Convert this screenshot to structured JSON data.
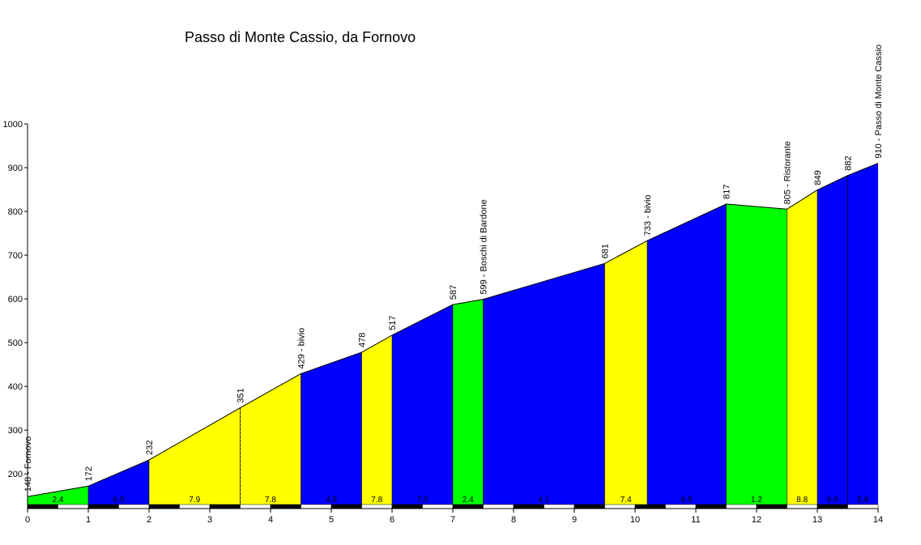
{
  "chart_data": {
    "type": "area",
    "title": "Passo di Monte Cassio, da Fornovo",
    "xlabel": "",
    "ylabel": "",
    "xlim": [
      0,
      14
    ],
    "ylim": [
      130,
      1000
    ],
    "x_ticks": [
      0,
      1,
      2,
      3,
      4,
      5,
      6,
      7,
      8,
      9,
      10,
      11,
      12,
      13,
      14
    ],
    "y_ticks": [
      200,
      300,
      400,
      500,
      600,
      700,
      800,
      900,
      1000
    ],
    "profile": [
      {
        "x": 0,
        "y": 148
      },
      {
        "x": 1,
        "y": 172
      },
      {
        "x": 2,
        "y": 232
      },
      {
        "x": 3.5,
        "y": 351
      },
      {
        "x": 4.5,
        "y": 429
      },
      {
        "x": 5.5,
        "y": 478
      },
      {
        "x": 6,
        "y": 517
      },
      {
        "x": 7,
        "y": 587
      },
      {
        "x": 7.5,
        "y": 599
      },
      {
        "x": 9.5,
        "y": 681
      },
      {
        "x": 10.2,
        "y": 733
      },
      {
        "x": 11.5,
        "y": 817
      },
      {
        "x": 12.5,
        "y": 805
      },
      {
        "x": 13,
        "y": 849
      },
      {
        "x": 13.5,
        "y": 882
      },
      {
        "x": 14,
        "y": 910
      }
    ],
    "segments": [
      {
        "x0": 0,
        "x1": 1,
        "gradient": "2.4",
        "color": "#00ff00"
      },
      {
        "x0": 1,
        "x1": 2,
        "gradient": "6.0",
        "color": "#0000ff"
      },
      {
        "x0": 2,
        "x1": 3.5,
        "gradient": "7.9",
        "color": "#ffff00"
      },
      {
        "x0": 3.5,
        "x1": 4.5,
        "gradient": "7.8",
        "color": "#ffff00"
      },
      {
        "x0": 4.5,
        "x1": 5.5,
        "gradient": "4.9",
        "color": "#0000ff"
      },
      {
        "x0": 5.5,
        "x1": 6,
        "gradient": "7.8",
        "color": "#ffff00"
      },
      {
        "x0": 6,
        "x1": 7,
        "gradient": "7.0",
        "color": "#0000ff"
      },
      {
        "x0": 7,
        "x1": 7.5,
        "gradient": "2.4",
        "color": "#00ff00"
      },
      {
        "x0": 7.5,
        "x1": 9.5,
        "gradient": "4.1",
        "color": "#0000ff"
      },
      {
        "x0": 9.5,
        "x1": 10.2,
        "gradient": "7.4",
        "color": "#ffff00"
      },
      {
        "x0": 10.2,
        "x1": 11.5,
        "gradient": "6.5",
        "color": "#0000ff"
      },
      {
        "x0": 11.5,
        "x1": 12.5,
        "gradient": "1.2",
        "color": "#00ff00"
      },
      {
        "x0": 12.5,
        "x1": 13,
        "gradient": "8.8",
        "color": "#ffff00"
      },
      {
        "x0": 13,
        "x1": 13.5,
        "gradient": "6.6",
        "color": "#0000ff"
      },
      {
        "x0": 13.5,
        "x1": 14,
        "gradient": "5.6",
        "color": "#0000ff"
      }
    ],
    "annotations": [
      {
        "x": 0,
        "y": 148,
        "label": "148 - Fornovo"
      },
      {
        "x": 1,
        "y": 172,
        "label": "172"
      },
      {
        "x": 2,
        "y": 232,
        "label": "232"
      },
      {
        "x": 3.5,
        "y": 351,
        "label": "351"
      },
      {
        "x": 4.5,
        "y": 429,
        "label": "429 - bivio"
      },
      {
        "x": 5.5,
        "y": 478,
        "label": "478"
      },
      {
        "x": 6,
        "y": 517,
        "label": "517"
      },
      {
        "x": 7,
        "y": 587,
        "label": "587"
      },
      {
        "x": 7.5,
        "y": 599,
        "label": "599 - Boschi di Bardone"
      },
      {
        "x": 9.5,
        "y": 681,
        "label": "681"
      },
      {
        "x": 10.2,
        "y": 733,
        "label": "733 - bivio"
      },
      {
        "x": 11.5,
        "y": 817,
        "label": "817"
      },
      {
        "x": 12.5,
        "y": 805,
        "label": "805 - Ristorante"
      },
      {
        "x": 13,
        "y": 849,
        "label": "849"
      },
      {
        "x": 13.5,
        "y": 882,
        "label": "882"
      },
      {
        "x": 14,
        "y": 910,
        "label": "910 - Passo di Monte Cassio"
      }
    ],
    "dashed_markers": [
      3.5,
      13.5
    ],
    "grid": false,
    "legend": "none"
  }
}
